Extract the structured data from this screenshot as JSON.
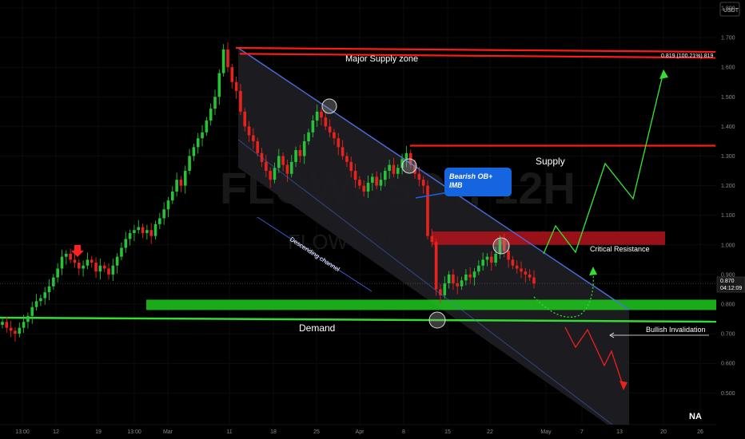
{
  "chart_data": {
    "type": "candlestick",
    "watermark": {
      "symbol": "FLOWUSDT, 12H",
      "name": "FLOW / TetherUS"
    },
    "y_axis": {
      "unit": "USDT",
      "ticks": [
        "1.800",
        "1.700",
        "1.600",
        "1.500",
        "1.400",
        "1.300",
        "1.200",
        "1.100",
        "1.000",
        "0.900",
        "0.800",
        "0.700",
        "0.600",
        "0.500"
      ],
      "current_price": "0.870",
      "countdown": "04:12:09",
      "ylim": [
        0.45,
        1.85
      ]
    },
    "x_axis": {
      "ticks": [
        "13:00",
        "12",
        "19",
        "13:00",
        "Mar",
        "11",
        "18",
        "25",
        "Apr",
        "8",
        "15",
        "22",
        "May",
        "7",
        "13",
        "20",
        "26"
      ]
    },
    "annotations": {
      "major_supply": "Major  Supply zone",
      "target": "0.819 (100.21%) 819",
      "supply": "Supply",
      "bearish_ob": "Bearish OB+\nIMB",
      "critical_resistance": "Critical Resistance",
      "descending_channel": "Descending channel",
      "demand": "Demand",
      "bullish_invalidation": "Bullish Invalidation",
      "na": "NA"
    },
    "levels": {
      "major_supply_top": 1.7,
      "major_supply_bottom": 1.64,
      "supply": 1.335,
      "critical_resistance_top": 1.045,
      "critical_resistance_bottom": 1.0,
      "demand_top": 0.815,
      "demand_bottom": 0.78
    },
    "colors": {
      "up": "#26c23a",
      "down": "#e8221c",
      "red_line": "#ff1a1a",
      "green_zone": "#1ec81e",
      "channel_line": "#4a6ee0",
      "bull_path": "#33dd33",
      "bear_path": "#e8221c",
      "callout": "#1565e0"
    },
    "closes": [
      0.74,
      0.72,
      0.71,
      0.7,
      0.72,
      0.74,
      0.76,
      0.79,
      0.81,
      0.82,
      0.84,
      0.86,
      0.89,
      0.92,
      0.96,
      0.97,
      0.95,
      0.94,
      0.92,
      0.93,
      0.95,
      0.94,
      0.91,
      0.93,
      0.92,
      0.9,
      0.93,
      0.96,
      0.99,
      1.02,
      1.04,
      1.05,
      1.06,
      1.04,
      1.05,
      1.03,
      1.07,
      1.09,
      1.12,
      1.15,
      1.18,
      1.22,
      1.2,
      1.25,
      1.3,
      1.33,
      1.36,
      1.38,
      1.42,
      1.46,
      1.5,
      1.58,
      1.66,
      1.6,
      1.55,
      1.52,
      1.45,
      1.4,
      1.37,
      1.35,
      1.31,
      1.28,
      1.25,
      1.22,
      1.26,
      1.3,
      1.27,
      1.24,
      1.28,
      1.32,
      1.3,
      1.35,
      1.38,
      1.42,
      1.45,
      1.43,
      1.4,
      1.38,
      1.36,
      1.33,
      1.3,
      1.28,
      1.25,
      1.22,
      1.2,
      1.18,
      1.21,
      1.23,
      1.2,
      1.22,
      1.25,
      1.27,
      1.24,
      1.26,
      1.29,
      1.31,
      1.27,
      1.24,
      1.22,
      1.2,
      1.03,
      1.01,
      0.85,
      0.83,
      0.87,
      0.9,
      0.87,
      0.86,
      0.88,
      0.9,
      0.89,
      0.91,
      0.93,
      0.95,
      0.96,
      0.94,
      0.97,
      1.02,
      0.98,
      0.95,
      0.93,
      0.92,
      0.91,
      0.9,
      0.89,
      0.87
    ]
  }
}
